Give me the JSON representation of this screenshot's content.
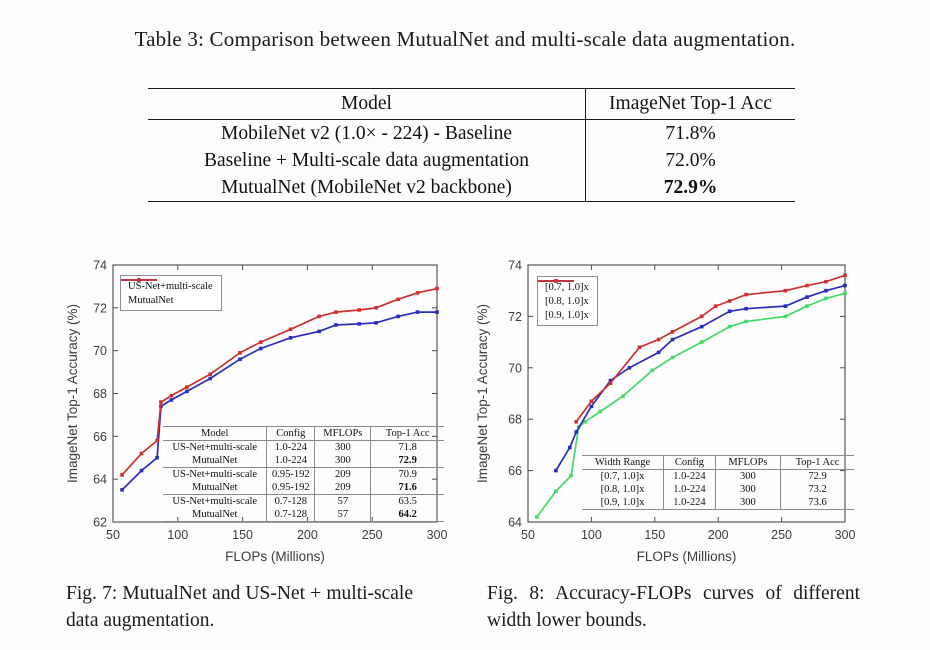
{
  "table3": {
    "caption": "Table 3: Comparison between MutualNet and multi-scale data augmentation.",
    "headers": [
      "Model",
      "ImageNet Top-1 Acc"
    ],
    "rows": [
      {
        "model": "MobileNet v2 (1.0× - 224) - Baseline",
        "acc": "71.8%",
        "bold": false
      },
      {
        "model": "Baseline + Multi-scale data augmentation",
        "acc": "72.0%",
        "bold": false
      },
      {
        "model": "MutualNet (MobileNet v2 backbone)",
        "acc": "72.9%",
        "bold": true
      }
    ]
  },
  "chart_data": [
    {
      "type": "line",
      "title": "",
      "xlabel": "FLOPs (Millions)",
      "ylabel": "ImageNet Top-1 Accuracy (%)",
      "xlim": [
        50,
        300
      ],
      "ylim": [
        62,
        74
      ],
      "xticks": [
        50,
        100,
        150,
        200,
        250,
        300
      ],
      "yticks": [
        62,
        64,
        66,
        68,
        70,
        72,
        74
      ],
      "grid": false,
      "legend_position": "top-left",
      "series": [
        {
          "name": "US-Net+multi-scale",
          "color": "#2b2bbd",
          "x": [
            57,
            72,
            84,
            87,
            95,
            107,
            125,
            148,
            164,
            187,
            209,
            222,
            240,
            253,
            270,
            285,
            300
          ],
          "y": [
            63.5,
            64.4,
            65.0,
            67.4,
            67.7,
            68.1,
            68.7,
            69.6,
            70.1,
            70.6,
            70.9,
            71.2,
            71.25,
            71.3,
            71.6,
            71.8,
            71.8
          ]
        },
        {
          "name": "MutualNet",
          "color": "#cf2f2f",
          "x": [
            57,
            72,
            84,
            87,
            95,
            107,
            125,
            148,
            164,
            187,
            209,
            222,
            240,
            253,
            270,
            285,
            300
          ],
          "y": [
            64.2,
            65.2,
            65.8,
            67.6,
            67.9,
            68.3,
            68.9,
            69.9,
            70.4,
            71.0,
            71.6,
            71.8,
            71.9,
            72.0,
            72.4,
            72.7,
            72.9
          ]
        }
      ],
      "inner_table": {
        "headers": [
          "Model",
          "Config",
          "MFLOPs",
          "Top-1 Acc"
        ],
        "rows": [
          [
            "US-Net+multi-scale",
            "1.0-224",
            "300",
            "71.8"
          ],
          [
            "MutualNet",
            "1.0-224",
            "300",
            "72.9"
          ],
          [
            "US-Net+multi-scale",
            "0.95-192",
            "209",
            "70.9"
          ],
          [
            "MutualNet",
            "0.95-192",
            "209",
            "71.6"
          ],
          [
            "US-Net+multi-scale",
            "0.7-128",
            "57",
            "63.5"
          ],
          [
            "MutualNet",
            "0.7-128",
            "57",
            "64.2"
          ]
        ],
        "bold_cells": [
          [
            1,
            3
          ],
          [
            3,
            3
          ],
          [
            5,
            3
          ]
        ],
        "rule_after_rows": [
          1,
          3
        ]
      },
      "caption": "Fig. 7: MutualNet and US-Net + multi-scale data augmentation."
    },
    {
      "type": "line",
      "title": "",
      "xlabel": "FLOPs (Millions)",
      "ylabel": "ImageNet Top-1 Accuracy (%)",
      "xlim": [
        50,
        300
      ],
      "ylim": [
        64,
        74
      ],
      "xticks": [
        50,
        100,
        150,
        200,
        250,
        300
      ],
      "yticks": [
        64,
        66,
        68,
        70,
        72,
        74
      ],
      "grid": false,
      "legend_position": "top-left",
      "series": [
        {
          "name": "[0.7, 1.0]x",
          "color": "#44d86a",
          "x": [
            57,
            72,
            84,
            90,
            95,
            107,
            125,
            148,
            164,
            187,
            209,
            222,
            253,
            270,
            285,
            300
          ],
          "y": [
            64.2,
            65.2,
            65.8,
            67.7,
            67.9,
            68.3,
            68.9,
            69.9,
            70.4,
            71.0,
            71.6,
            71.8,
            72.0,
            72.4,
            72.7,
            72.9
          ]
        },
        {
          "name": "[0.8, 1.0]x",
          "color": "#2b2bbd",
          "x": [
            72,
            83,
            88,
            100,
            115,
            130,
            153,
            164,
            187,
            209,
            222,
            253,
            270,
            285,
            300
          ],
          "y": [
            66.0,
            66.9,
            67.5,
            68.5,
            69.5,
            70.0,
            70.6,
            71.1,
            71.6,
            72.2,
            72.3,
            72.4,
            72.75,
            73.0,
            73.2
          ]
        },
        {
          "name": "[0.9, 1.0]x",
          "color": "#cf2f2f",
          "x": [
            88,
            100,
            115,
            138,
            153,
            164,
            187,
            198,
            209,
            222,
            253,
            270,
            285,
            300
          ],
          "y": [
            67.9,
            68.7,
            69.4,
            70.8,
            71.1,
            71.4,
            72.0,
            72.4,
            72.6,
            72.85,
            73.0,
            73.2,
            73.35,
            73.6
          ]
        }
      ],
      "inner_table": {
        "headers": [
          "Width Range",
          "Config",
          "MFLOPs",
          "Top-1 Acc"
        ],
        "rows": [
          [
            "[0.7, 1.0]x",
            "1.0-224",
            "300",
            "72.9"
          ],
          [
            "[0.8, 1.0]x",
            "1.0-224",
            "300",
            "73.2"
          ],
          [
            "[0.9, 1.0]x",
            "1.0-224",
            "300",
            "73.6"
          ]
        ],
        "bold_cells": [],
        "rule_after_rows": []
      },
      "caption": "Fig. 8: Accuracy-FLOPs curves of different width lower bounds."
    }
  ],
  "colors": {
    "us_net_blue": "#2b2bbd",
    "mutualnet_red": "#cf2f2f",
    "width07_green": "#44d86a",
    "axis": "#4a4a4a",
    "table_rule": "#8a8a8a"
  }
}
